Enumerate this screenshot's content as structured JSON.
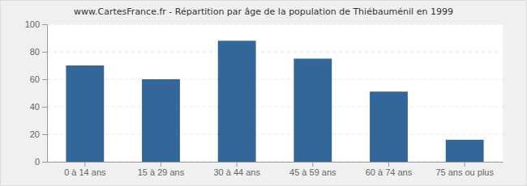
{
  "chart_data": {
    "type": "bar",
    "title": "www.CartesFrance.fr - Répartition par âge de la population de Thiébauménil en 1999",
    "categories": [
      "0 à 14 ans",
      "15 à 29 ans",
      "30 à 44 ans",
      "45 à 59 ans",
      "60 à 74 ans",
      "75 ans ou plus"
    ],
    "values": [
      70,
      60,
      88,
      75,
      51,
      16
    ],
    "color": "#336699",
    "ylim": [
      0,
      100
    ],
    "yticks": [
      0,
      20,
      40,
      60,
      80,
      100
    ],
    "grid": true
  }
}
